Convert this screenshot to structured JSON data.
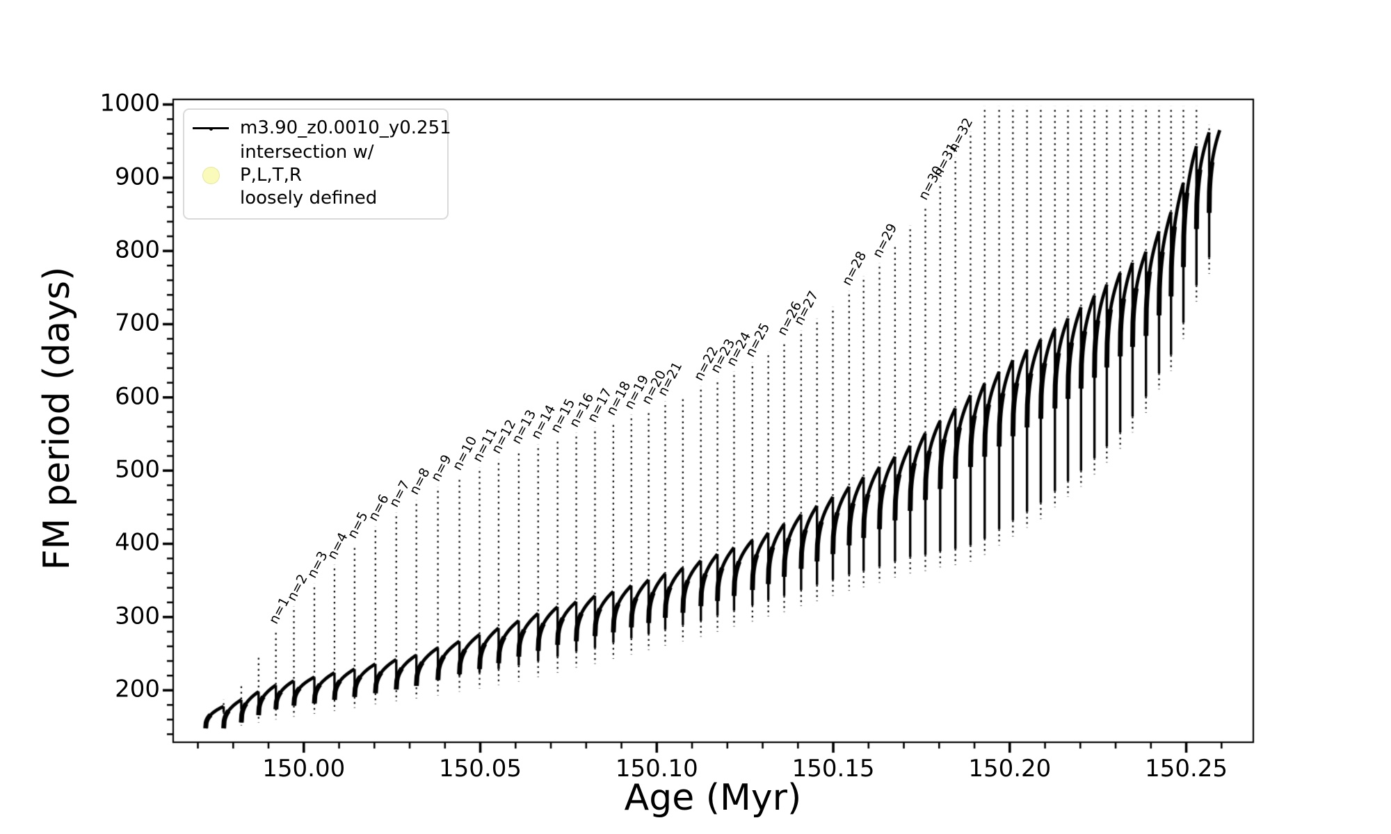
{
  "figure": {
    "background": "#ffffff",
    "line_color": "#000000",
    "tick_color": "#000000"
  },
  "legend": {
    "entries": [
      {
        "label": "m3.90_z0.0010_y0.251",
        "marker": "line-with-dot",
        "color": "#000000"
      },
      {
        "label": "intersection w/ P,L,T,R\nloosely defined",
        "marker": "circle",
        "color": "#fafac0"
      }
    ]
  },
  "chart_data": {
    "type": "line",
    "title": "",
    "xlabel": "Age (Myr)",
    "ylabel": "FM period (days)",
    "series_name": "m3.90_z0.0010_y0.251",
    "xlim": [
      149.963,
      150.269
    ],
    "ylim": [
      129,
      1007
    ],
    "grid": false,
    "legend_position": "upper left",
    "x_ticks": {
      "values": [
        150.0,
        150.05,
        150.1,
        150.15,
        150.2,
        150.25
      ],
      "labels": [
        "150.00",
        "150.05",
        "150.10",
        "150.15",
        "150.20",
        "150.25"
      ]
    },
    "x_minor_step": 0.01,
    "y_ticks": {
      "values": [
        200,
        300,
        400,
        500,
        600,
        700,
        800,
        900,
        1000
      ],
      "labels": [
        "200",
        "300",
        "400",
        "500",
        "600",
        "700",
        "800",
        "900",
        "1000"
      ]
    },
    "y_minor_step": 20,
    "data_start": {
      "age": 149.9722,
      "period": 148
    },
    "data_end": {
      "age": 150.2595,
      "period": 965
    },
    "teeth_fields": [
      "age",
      "arc_top",
      "arc_start",
      "tail_bottom",
      "spike_top",
      "label"
    ],
    "teeth": [
      [
        149.9773,
        178,
        148,
        148,
        190,
        null
      ],
      [
        149.9823,
        187,
        156,
        152,
        213,
        null
      ],
      [
        149.9872,
        198,
        166,
        156,
        252,
        null
      ],
      [
        149.9921,
        207,
        174,
        160,
        286,
        "n=1"
      ],
      [
        149.9972,
        213,
        179,
        164,
        317,
        "n=2"
      ],
      [
        150.003,
        218,
        182,
        168,
        348,
        "n=3"
      ],
      [
        150.0087,
        224,
        187,
        172,
        374,
        "n=4"
      ],
      [
        150.0144,
        229,
        191,
        176,
        402,
        "n=5"
      ],
      [
        150.0203,
        236,
        196,
        181,
        426,
        "n=6"
      ],
      [
        150.0262,
        242,
        201,
        185,
        445,
        "n=7"
      ],
      [
        150.0319,
        248,
        206,
        189,
        462,
        "n=8"
      ],
      [
        150.038,
        258,
        214,
        193,
        480,
        "n=9"
      ],
      [
        150.0441,
        267,
        222,
        198,
        495,
        "n=10"
      ],
      [
        150.0498,
        276,
        229,
        202,
        507,
        "n=11"
      ],
      [
        150.0552,
        285,
        237,
        207,
        518,
        "n=12"
      ],
      [
        150.0609,
        295,
        246,
        212,
        531,
        "n=13"
      ],
      [
        150.0664,
        305,
        254,
        218,
        538,
        "n=14"
      ],
      [
        150.0719,
        314,
        262,
        224,
        547,
        "n=15"
      ],
      [
        150.0772,
        321,
        267,
        231,
        554,
        "n=16"
      ],
      [
        150.0825,
        329,
        274,
        236,
        561,
        "n=17"
      ],
      [
        150.0877,
        335,
        279,
        243,
        570,
        "n=18"
      ],
      [
        150.0928,
        343,
        286,
        249,
        579,
        "n=19"
      ],
      [
        150.0977,
        351,
        292,
        255,
        586,
        "n=20"
      ],
      [
        150.1024,
        359,
        299,
        261,
        597,
        "n=21"
      ],
      [
        150.1074,
        367,
        306,
        267,
        605,
        null
      ],
      [
        150.1125,
        377,
        315,
        273,
        618,
        "n=22"
      ],
      [
        150.1172,
        386,
        322,
        280,
        628,
        "n=23"
      ],
      [
        150.1219,
        395,
        329,
        287,
        638,
        "n=24"
      ],
      [
        150.1271,
        405,
        337,
        294,
        650,
        "n=25"
      ],
      [
        150.1316,
        415,
        345,
        301,
        665,
        null
      ],
      [
        150.1361,
        427,
        355,
        307,
        680,
        "n=26"
      ],
      [
        150.1409,
        440,
        366,
        315,
        694,
        "n=27"
      ],
      [
        150.1454,
        452,
        376,
        322,
        710,
        null
      ],
      [
        150.1499,
        464,
        386,
        329,
        726,
        null
      ],
      [
        150.1545,
        478,
        398,
        336,
        748,
        "n=28"
      ],
      [
        150.1586,
        491,
        408,
        341,
        768,
        null
      ],
      [
        150.1631,
        505,
        420,
        347,
        786,
        "n=29"
      ],
      [
        150.1675,
        519,
        432,
        354,
        813,
        null
      ],
      [
        150.1718,
        534,
        445,
        360,
        837,
        null
      ],
      [
        150.1761,
        551,
        460,
        363,
        865,
        "n=30"
      ],
      [
        150.1803,
        568,
        475,
        368,
        896,
        "n=31"
      ],
      [
        150.1846,
        585,
        489,
        371,
        930,
        "n=32"
      ],
      [
        150.1889,
        603,
        505,
        376,
        965,
        null
      ],
      [
        150.1929,
        619,
        519,
        385,
        1000,
        null
      ],
      [
        150.197,
        635,
        533,
        398,
        1000,
        null
      ],
      [
        150.2009,
        651,
        547,
        410,
        1000,
        null
      ],
      [
        150.2049,
        665,
        559,
        422,
        1000,
        null
      ],
      [
        150.2088,
        679,
        571,
        434,
        1000,
        null
      ],
      [
        150.2128,
        694,
        585,
        450,
        1000,
        null
      ],
      [
        150.2165,
        708,
        598,
        464,
        1000,
        null
      ],
      [
        150.2202,
        723,
        612,
        478,
        1000,
        null
      ],
      [
        150.224,
        739,
        627,
        495,
        1000,
        null
      ],
      [
        150.2275,
        754,
        641,
        511,
        1000,
        null
      ],
      [
        150.2313,
        770,
        656,
        530,
        1000,
        null
      ],
      [
        150.2348,
        784,
        669,
        552,
        1000,
        null
      ],
      [
        150.2386,
        799,
        684,
        579,
        1000,
        null
      ],
      [
        150.2423,
        827,
        712,
        611,
        1000,
        null
      ],
      [
        150.2457,
        853,
        738,
        636,
        1000,
        null
      ],
      [
        150.2492,
        893,
        778,
        680,
        1000,
        null
      ],
      [
        150.2529,
        943,
        830,
        731,
        1000,
        null
      ],
      [
        150.2565,
        962,
        852,
        769,
        975,
        null
      ]
    ]
  }
}
